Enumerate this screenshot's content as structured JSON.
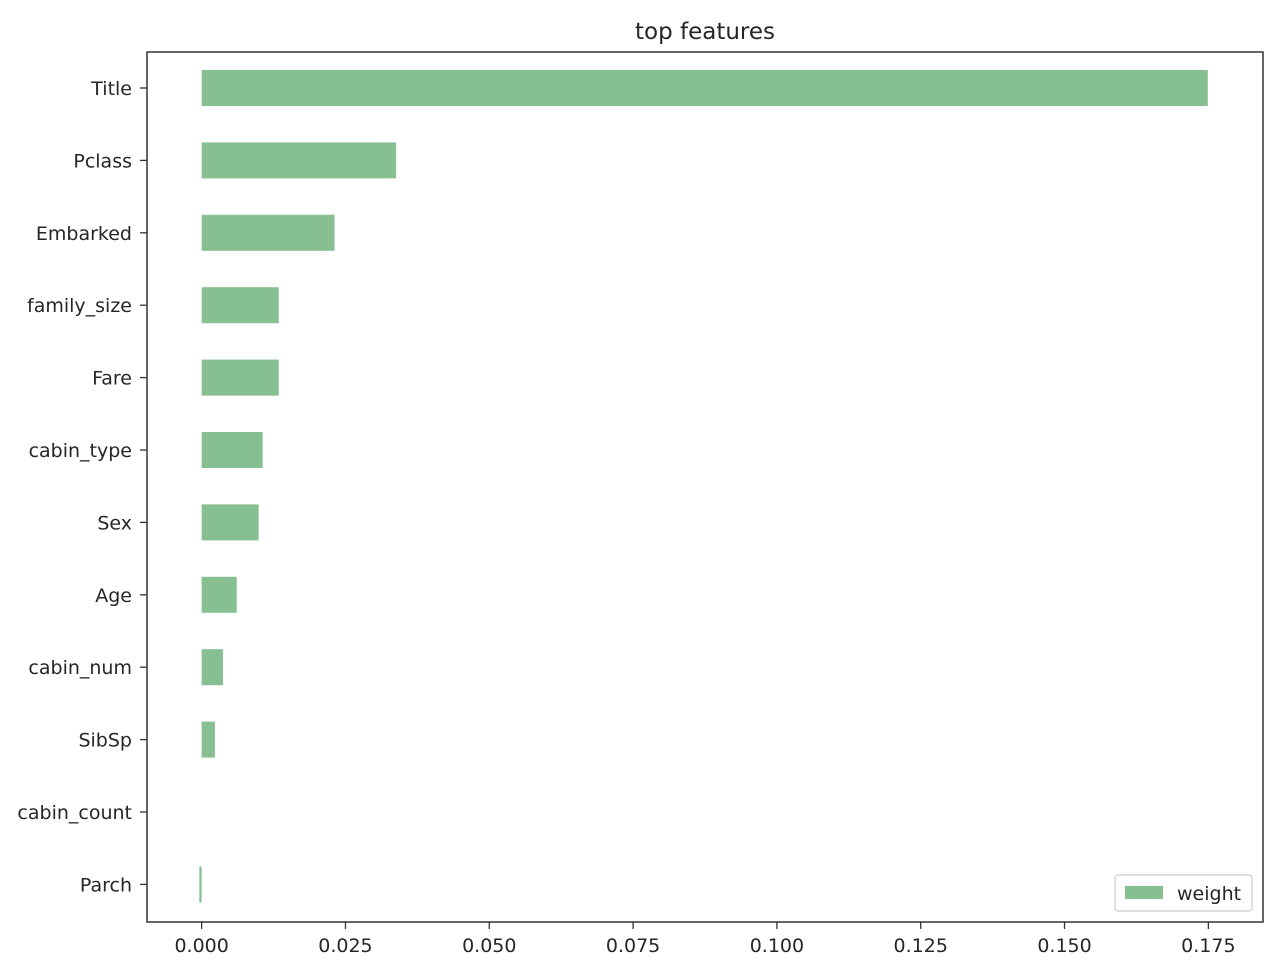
{
  "chart_data": {
    "type": "bar",
    "orientation": "horizontal",
    "title": "top features",
    "xlabel": "",
    "ylabel": "",
    "categories": [
      "Title",
      "Pclass",
      "Embarked",
      "family_size",
      "Fare",
      "cabin_type",
      "Sex",
      "Age",
      "cabin_num",
      "SibSp",
      "cabin_count",
      "Parch"
    ],
    "series": [
      {
        "name": "weight",
        "color": "#86bf91",
        "values": [
          0.1749,
          0.0338,
          0.0231,
          0.0134,
          0.0134,
          0.0106,
          0.0099,
          0.0061,
          0.0037,
          0.0023,
          0.0,
          -0.0004
        ]
      }
    ],
    "xlim": [
      -0.0095,
      0.1845
    ],
    "xticks": [
      0.0,
      0.025,
      0.05,
      0.075,
      0.1,
      0.125,
      0.15,
      0.175
    ],
    "xtick_labels": [
      "0.000",
      "0.025",
      "0.050",
      "0.075",
      "0.100",
      "0.125",
      "0.150",
      "0.175"
    ],
    "grid": false,
    "legend_position": "lower-right"
  }
}
